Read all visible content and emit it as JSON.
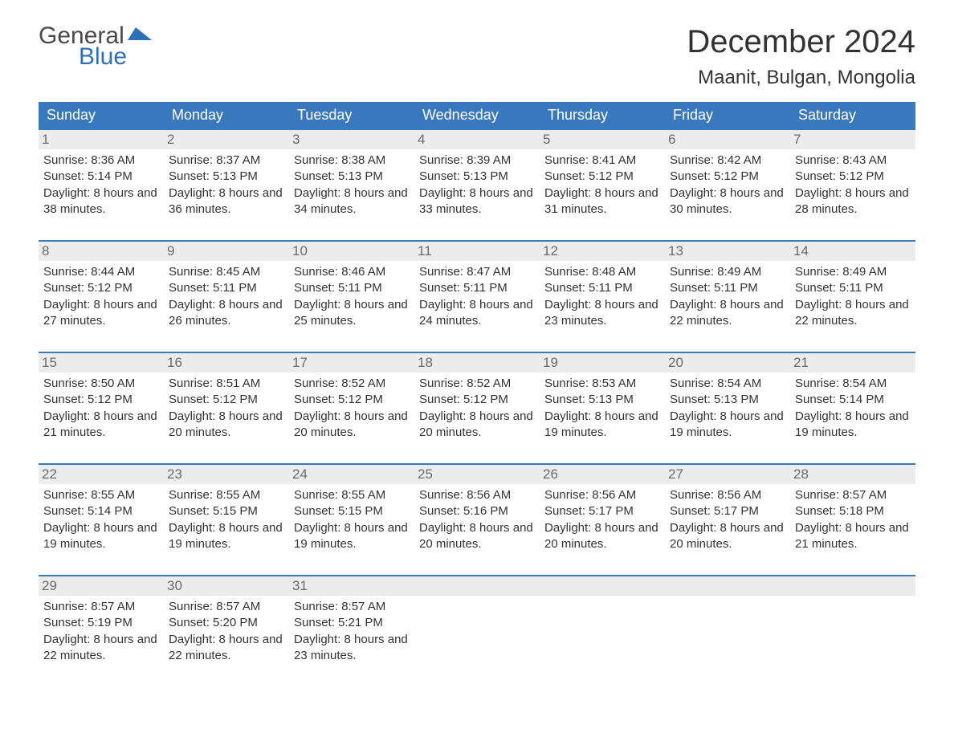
{
  "brand": {
    "part1": "General",
    "part2": "Blue",
    "flag_color": "#2f71b8"
  },
  "title": "December 2024",
  "location": "Maanit, Bulgan, Mongolia",
  "colors": {
    "header_bg": "#3a78bd",
    "header_text": "#ffffff",
    "row_border": "#3a78bd",
    "daynum_bg": "#ececec",
    "daynum_text": "#6b6b6b",
    "body_text": "#333333",
    "page_bg": "#ffffff"
  },
  "day_headers": [
    "Sunday",
    "Monday",
    "Tuesday",
    "Wednesday",
    "Thursday",
    "Friday",
    "Saturday"
  ],
  "weeks": [
    [
      {
        "n": "1",
        "sunrise": "8:36 AM",
        "sunset": "5:14 PM",
        "daylight": "8 hours and 38 minutes."
      },
      {
        "n": "2",
        "sunrise": "8:37 AM",
        "sunset": "5:13 PM",
        "daylight": "8 hours and 36 minutes."
      },
      {
        "n": "3",
        "sunrise": "8:38 AM",
        "sunset": "5:13 PM",
        "daylight": "8 hours and 34 minutes."
      },
      {
        "n": "4",
        "sunrise": "8:39 AM",
        "sunset": "5:13 PM",
        "daylight": "8 hours and 33 minutes."
      },
      {
        "n": "5",
        "sunrise": "8:41 AM",
        "sunset": "5:12 PM",
        "daylight": "8 hours and 31 minutes."
      },
      {
        "n": "6",
        "sunrise": "8:42 AM",
        "sunset": "5:12 PM",
        "daylight": "8 hours and 30 minutes."
      },
      {
        "n": "7",
        "sunrise": "8:43 AM",
        "sunset": "5:12 PM",
        "daylight": "8 hours and 28 minutes."
      }
    ],
    [
      {
        "n": "8",
        "sunrise": "8:44 AM",
        "sunset": "5:12 PM",
        "daylight": "8 hours and 27 minutes."
      },
      {
        "n": "9",
        "sunrise": "8:45 AM",
        "sunset": "5:11 PM",
        "daylight": "8 hours and 26 minutes."
      },
      {
        "n": "10",
        "sunrise": "8:46 AM",
        "sunset": "5:11 PM",
        "daylight": "8 hours and 25 minutes."
      },
      {
        "n": "11",
        "sunrise": "8:47 AM",
        "sunset": "5:11 PM",
        "daylight": "8 hours and 24 minutes."
      },
      {
        "n": "12",
        "sunrise": "8:48 AM",
        "sunset": "5:11 PM",
        "daylight": "8 hours and 23 minutes."
      },
      {
        "n": "13",
        "sunrise": "8:49 AM",
        "sunset": "5:11 PM",
        "daylight": "8 hours and 22 minutes."
      },
      {
        "n": "14",
        "sunrise": "8:49 AM",
        "sunset": "5:11 PM",
        "daylight": "8 hours and 22 minutes."
      }
    ],
    [
      {
        "n": "15",
        "sunrise": "8:50 AM",
        "sunset": "5:12 PM",
        "daylight": "8 hours and 21 minutes."
      },
      {
        "n": "16",
        "sunrise": "8:51 AM",
        "sunset": "5:12 PM",
        "daylight": "8 hours and 20 minutes."
      },
      {
        "n": "17",
        "sunrise": "8:52 AM",
        "sunset": "5:12 PM",
        "daylight": "8 hours and 20 minutes."
      },
      {
        "n": "18",
        "sunrise": "8:52 AM",
        "sunset": "5:12 PM",
        "daylight": "8 hours and 20 minutes."
      },
      {
        "n": "19",
        "sunrise": "8:53 AM",
        "sunset": "5:13 PM",
        "daylight": "8 hours and 19 minutes."
      },
      {
        "n": "20",
        "sunrise": "8:54 AM",
        "sunset": "5:13 PM",
        "daylight": "8 hours and 19 minutes."
      },
      {
        "n": "21",
        "sunrise": "8:54 AM",
        "sunset": "5:14 PM",
        "daylight": "8 hours and 19 minutes."
      }
    ],
    [
      {
        "n": "22",
        "sunrise": "8:55 AM",
        "sunset": "5:14 PM",
        "daylight": "8 hours and 19 minutes."
      },
      {
        "n": "23",
        "sunrise": "8:55 AM",
        "sunset": "5:15 PM",
        "daylight": "8 hours and 19 minutes."
      },
      {
        "n": "24",
        "sunrise": "8:55 AM",
        "sunset": "5:15 PM",
        "daylight": "8 hours and 19 minutes."
      },
      {
        "n": "25",
        "sunrise": "8:56 AM",
        "sunset": "5:16 PM",
        "daylight": "8 hours and 20 minutes."
      },
      {
        "n": "26",
        "sunrise": "8:56 AM",
        "sunset": "5:17 PM",
        "daylight": "8 hours and 20 minutes."
      },
      {
        "n": "27",
        "sunrise": "8:56 AM",
        "sunset": "5:17 PM",
        "daylight": "8 hours and 20 minutes."
      },
      {
        "n": "28",
        "sunrise": "8:57 AM",
        "sunset": "5:18 PM",
        "daylight": "8 hours and 21 minutes."
      }
    ],
    [
      {
        "n": "29",
        "sunrise": "8:57 AM",
        "sunset": "5:19 PM",
        "daylight": "8 hours and 22 minutes."
      },
      {
        "n": "30",
        "sunrise": "8:57 AM",
        "sunset": "5:20 PM",
        "daylight": "8 hours and 22 minutes."
      },
      {
        "n": "31",
        "sunrise": "8:57 AM",
        "sunset": "5:21 PM",
        "daylight": "8 hours and 23 minutes."
      },
      null,
      null,
      null,
      null
    ]
  ],
  "labels": {
    "sunrise": "Sunrise: ",
    "sunset": "Sunset: ",
    "daylight": "Daylight: "
  }
}
